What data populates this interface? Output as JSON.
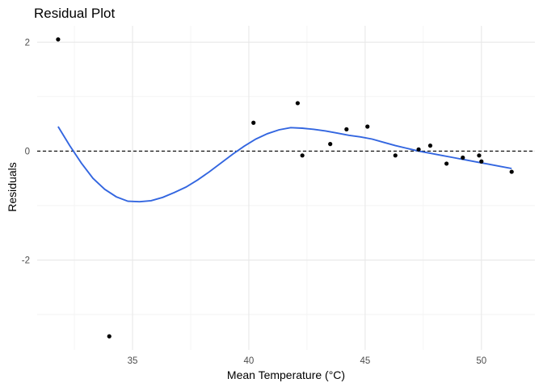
{
  "chart_data": {
    "type": "scatter",
    "title": "Residual Plot",
    "xlabel": "Mean Temperature (°C)",
    "ylabel": "Residuals",
    "xlim": [
      30.9,
      52.3
    ],
    "ylim": [
      -3.65,
      2.3
    ],
    "x_ticks": [
      35,
      40,
      45,
      50
    ],
    "x_minor_ticks": [
      32.5,
      37.5,
      42.5,
      47.5
    ],
    "y_ticks": [
      -2,
      0,
      2
    ],
    "y_minor_ticks": [
      -3,
      -1,
      1
    ],
    "grid": true,
    "reference_line": {
      "y": 0,
      "style": "dashed",
      "color": "#000000"
    },
    "points": {
      "color": "#000000",
      "x": [
        31.8,
        34.0,
        40.2,
        42.1,
        42.3,
        43.5,
        44.2,
        45.1,
        46.3,
        47.3,
        47.8,
        48.5,
        49.2,
        49.9,
        50.0,
        51.3
      ],
      "y": [
        2.05,
        -3.4,
        0.52,
        0.88,
        -0.08,
        0.13,
        0.4,
        0.45,
        -0.08,
        0.03,
        0.1,
        -0.23,
        -0.12,
        -0.08,
        -0.19,
        -0.38
      ]
    },
    "smooth_line": {
      "color": "#3366e0",
      "x": [
        31.8,
        32.3,
        32.8,
        33.3,
        33.8,
        34.3,
        34.8,
        35.3,
        35.8,
        36.3,
        36.8,
        37.3,
        37.8,
        38.3,
        38.8,
        39.3,
        39.8,
        40.3,
        40.8,
        41.3,
        41.8,
        42.3,
        42.8,
        43.3,
        43.8,
        44.3,
        44.8,
        45.3,
        45.8,
        46.3,
        46.8,
        47.3,
        47.8,
        48.3,
        48.8,
        49.3,
        49.8,
        50.3,
        50.8,
        51.3
      ],
      "y": [
        0.45,
        0.1,
        -0.22,
        -0.5,
        -0.7,
        -0.84,
        -0.92,
        -0.93,
        -0.91,
        -0.85,
        -0.76,
        -0.66,
        -0.53,
        -0.38,
        -0.22,
        -0.06,
        0.09,
        0.22,
        0.32,
        0.39,
        0.43,
        0.42,
        0.4,
        0.37,
        0.33,
        0.29,
        0.26,
        0.22,
        0.16,
        0.1,
        0.05,
        0.0,
        -0.04,
        -0.08,
        -0.12,
        -0.16,
        -0.2,
        -0.24,
        -0.28,
        -0.32
      ]
    }
  }
}
